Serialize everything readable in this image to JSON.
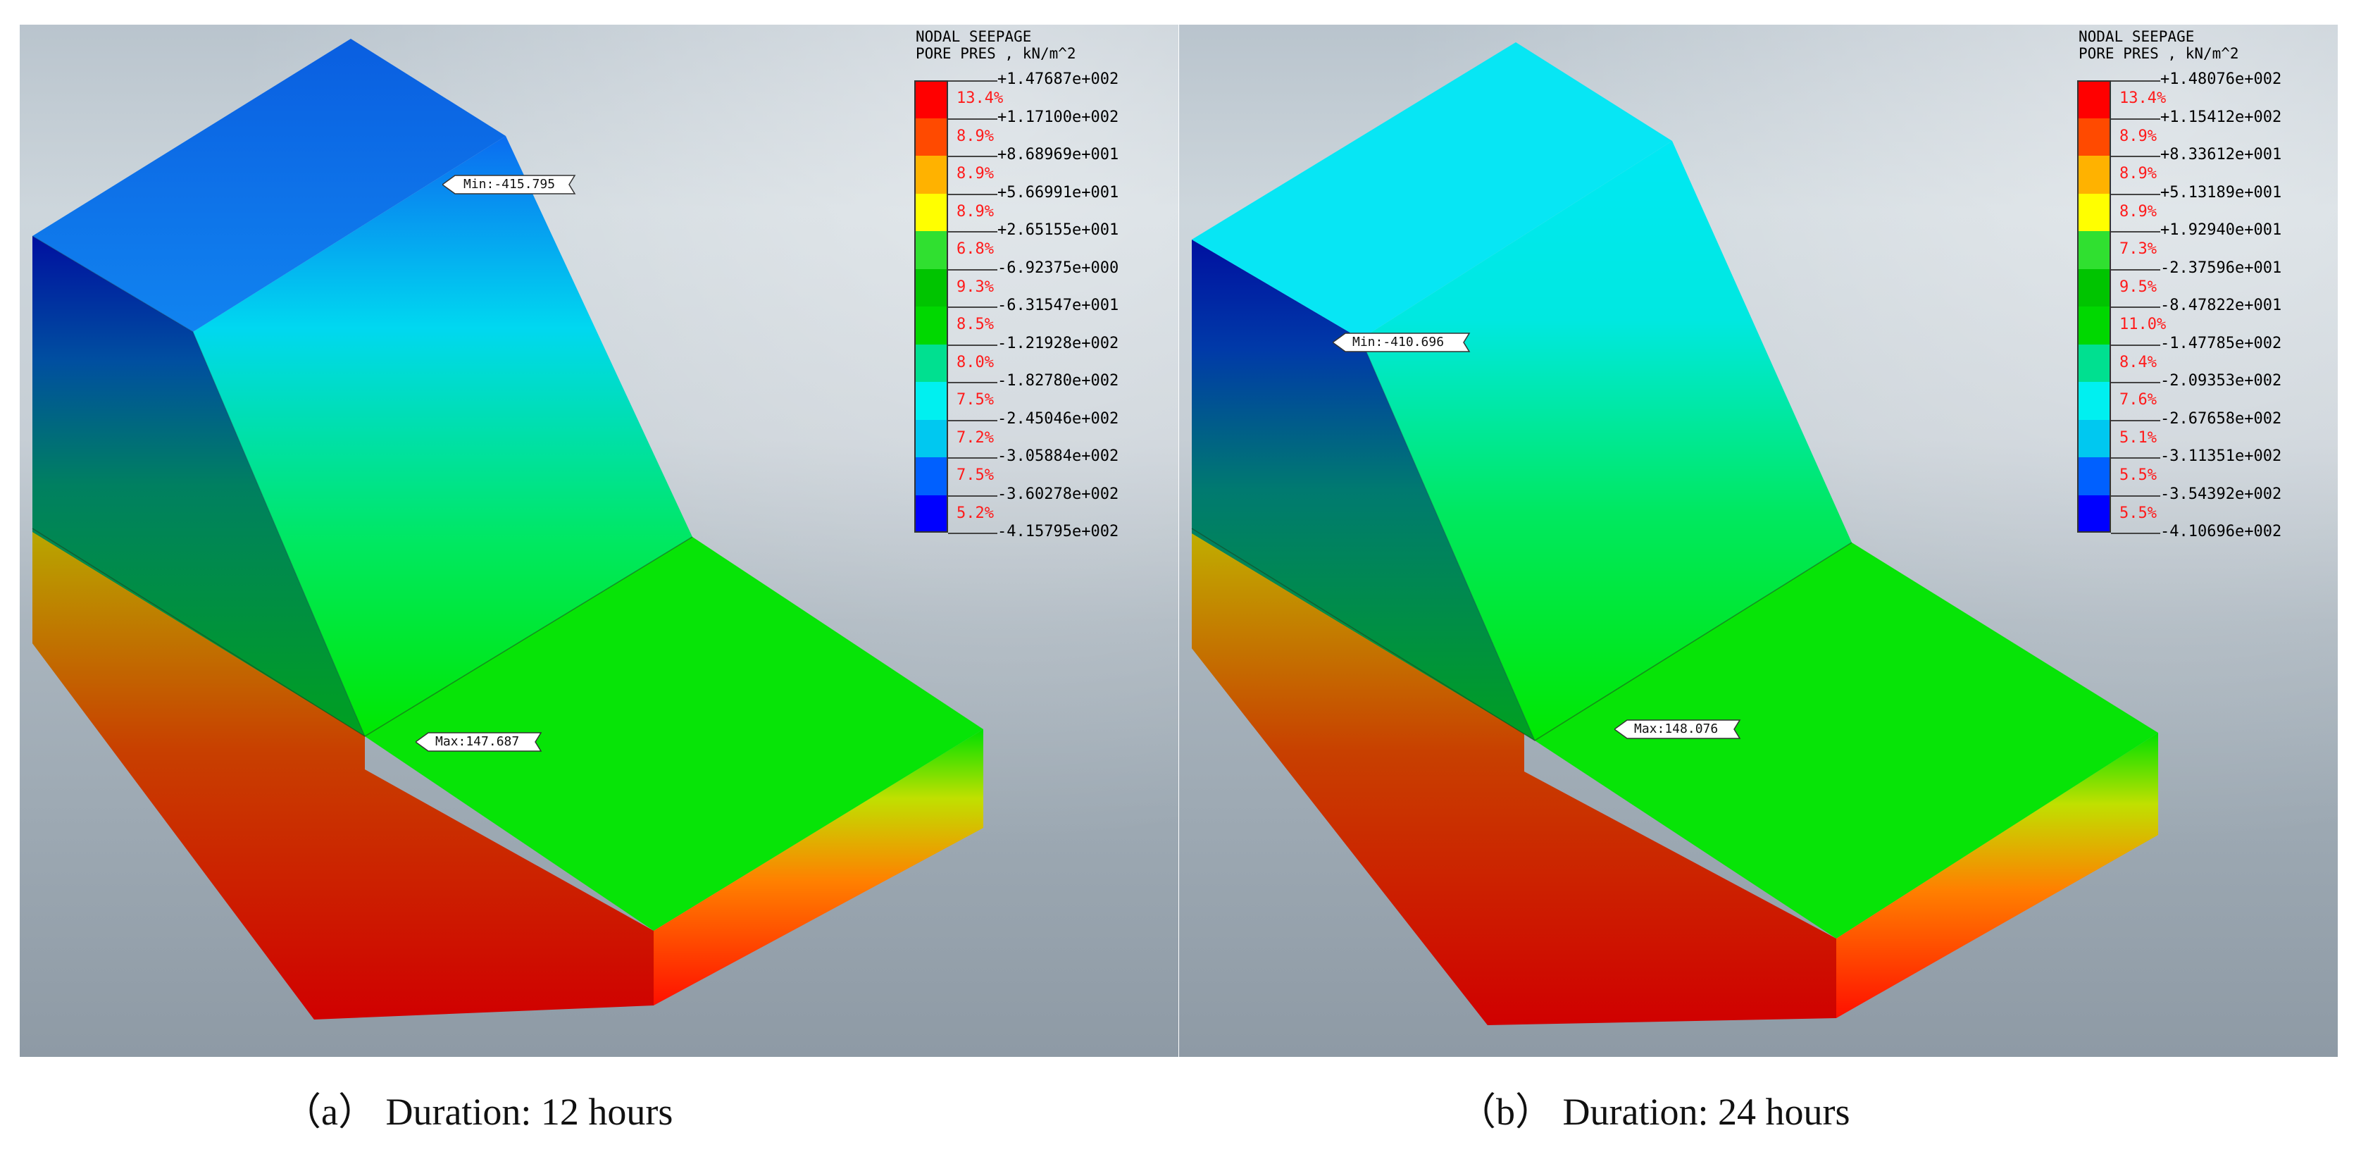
{
  "panels": [
    {
      "legend": {
        "title_line1": "NODAL SEEPAGE",
        "title_line2": "PORE PRES , kN/m^2",
        "ticks": [
          "+1.47687e+002",
          "+1.17100e+002",
          "+8.68969e+001",
          "+5.66991e+001",
          "+2.65155e+001",
          "-6.92375e+000",
          "-6.31547e+001",
          "-1.21928e+002",
          "-1.82780e+002",
          "-2.45046e+002",
          "-3.05884e+002",
          "-3.60278e+002",
          "-4.15795e+002"
        ],
        "percents": [
          "13.4%",
          "8.9%",
          "8.9%",
          "8.9%",
          "6.8%",
          "9.3%",
          "8.5%",
          "8.0%",
          "7.5%",
          "7.2%",
          "7.5%",
          "5.2%"
        ]
      },
      "min_marker": "Min:-415.795",
      "max_marker": "Max:147.687",
      "caption": "（a） Duration: 12 hours"
    },
    {
      "legend": {
        "title_line1": "NODAL SEEPAGE",
        "title_line2": "PORE PRES , kN/m^2",
        "ticks": [
          "+1.48076e+002",
          "+1.15412e+002",
          "+8.33612e+001",
          "+5.13189e+001",
          "+1.92940e+001",
          "-2.37596e+001",
          "-8.47822e+001",
          "-1.47785e+002",
          "-2.09353e+002",
          "-2.67658e+002",
          "-3.11351e+002",
          "-3.54392e+002",
          "-4.10696e+002"
        ],
        "percents": [
          "13.4%",
          "8.9%",
          "8.9%",
          "8.9%",
          "7.3%",
          "9.5%",
          "11.0%",
          "8.4%",
          "7.6%",
          "5.1%",
          "5.5%",
          "5.5%"
        ]
      },
      "min_marker": "Min:-410.696",
      "max_marker": "Max:148.076",
      "caption": "（b） Duration: 24 hours"
    }
  ],
  "colors": {
    "scale_band_colors": [
      "#ff0000",
      "#ff4a00",
      "#ffb200",
      "#ffff00",
      "#30e030",
      "#00c400",
      "#00d800",
      "#00e090",
      "#00f0f0",
      "#00c8f0",
      "#0060ff",
      "#0000ff"
    ],
    "label_percent_color": "#ff1a1a"
  }
}
